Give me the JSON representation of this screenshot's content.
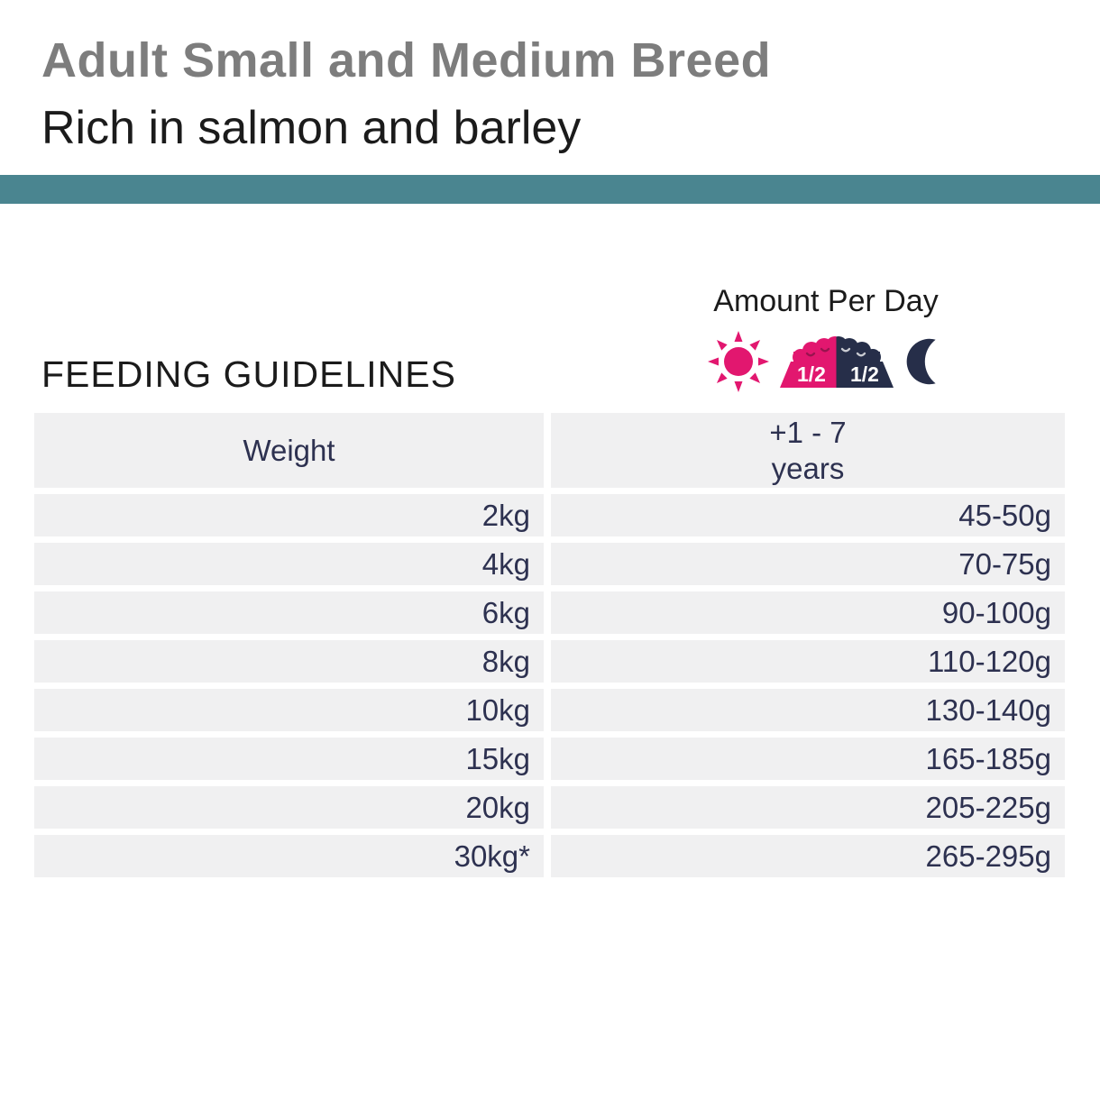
{
  "header": {
    "title": "Adult Small and Medium Breed",
    "subtitle": "Rich in salmon and barley"
  },
  "colors": {
    "title_gray": "#7d7d7d",
    "text_dark": "#1b1b1b",
    "teal_divider": "#4a8590",
    "pink": "#e2176f",
    "navy": "#262e49",
    "row_bg": "#f0f0f1",
    "table_text": "#2d3150"
  },
  "amount": {
    "label": "Amount Per Day",
    "morning_half": "1/2",
    "evening_half": "1/2"
  },
  "section": {
    "heading": "FEEDING GUIDELINES"
  },
  "table": {
    "weight_header": "Weight",
    "age_header_line1": "+1 - 7",
    "age_header_line2": "years",
    "rows": [
      {
        "weight": "2kg",
        "amount": "45-50g"
      },
      {
        "weight": "4kg",
        "amount": "70-75g"
      },
      {
        "weight": "6kg",
        "amount": "90-100g"
      },
      {
        "weight": "8kg",
        "amount": "110-120g"
      },
      {
        "weight": "10kg",
        "amount": "130-140g"
      },
      {
        "weight": "15kg",
        "amount": "165-185g"
      },
      {
        "weight": "20kg",
        "amount": "205-225g"
      },
      {
        "weight": "30kg*",
        "amount": "265-295g"
      }
    ]
  },
  "icons": {
    "sun": "sun-icon",
    "bowl": "half-half-food-bowl-icon",
    "moon": "moon-icon"
  }
}
